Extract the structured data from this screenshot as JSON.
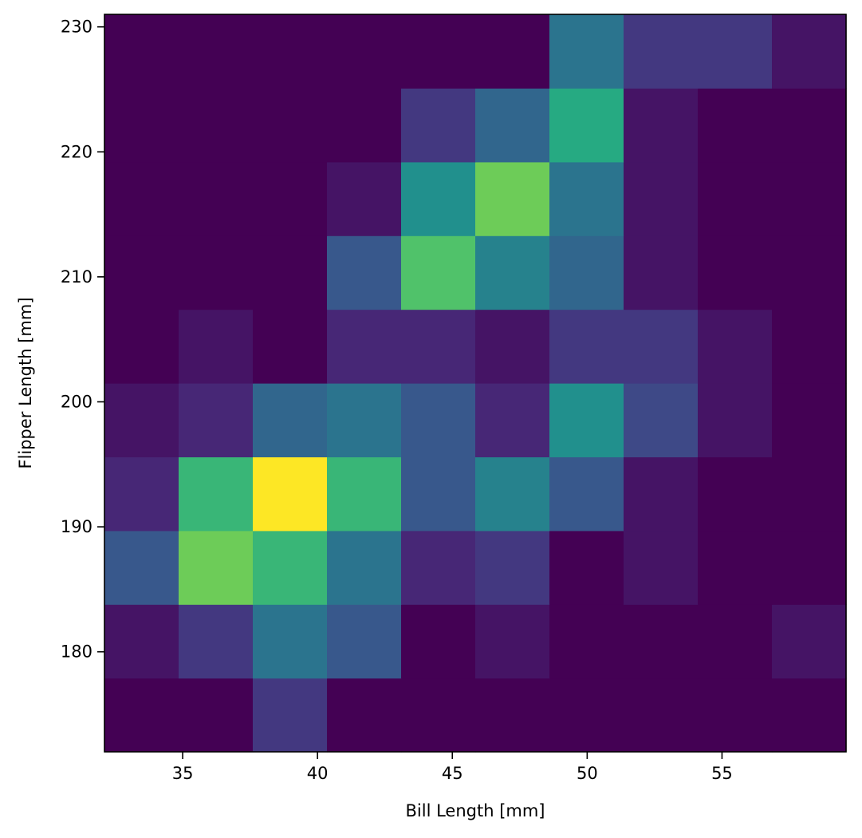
{
  "chart_data": {
    "type": "heatmap",
    "xlabel": "Bill Length [mm]",
    "ylabel": "Flipper Length [mm]",
    "xlim": [
      32.1,
      59.6
    ],
    "ylim": [
      172,
      231
    ],
    "x_ticks": [
      35,
      40,
      45,
      50,
      55
    ],
    "y_ticks": [
      180,
      190,
      200,
      210,
      220,
      230
    ],
    "x_bin_edges": [
      32.1,
      34.85,
      37.6,
      40.35,
      43.1,
      45.85,
      48.6,
      51.35,
      54.1,
      56.85,
      59.6
    ],
    "y_bin_edges": [
      172,
      177.9,
      183.8,
      189.7,
      195.6,
      201.5,
      207.4,
      213.3,
      219.2,
      225.1,
      231
    ],
    "colormap": "viridis",
    "value_range": [
      0,
      18
    ],
    "counts_bottom_to_top": [
      [
        0,
        0,
        3,
        0,
        0,
        0,
        0,
        0,
        0,
        0
      ],
      [
        1,
        3,
        7,
        5,
        0,
        1,
        0,
        0,
        0,
        1
      ],
      [
        5,
        14,
        12,
        7,
        2,
        3,
        0,
        1,
        0,
        0
      ],
      [
        2,
        12,
        18,
        12,
        5,
        8,
        5,
        1,
        0,
        0
      ],
      [
        1,
        2,
        6,
        7,
        5,
        2,
        9,
        4,
        1,
        0
      ],
      [
        0,
        1,
        0,
        2,
        2,
        1,
        3,
        3,
        1,
        0
      ],
      [
        0,
        0,
        0,
        5,
        13,
        8,
        6,
        1,
        0,
        0
      ],
      [
        0,
        0,
        0,
        1,
        9,
        14,
        7,
        1,
        0,
        0
      ],
      [
        0,
        0,
        0,
        0,
        3,
        6,
        11,
        1,
        0,
        0
      ],
      [
        0,
        0,
        0,
        0,
        0,
        0,
        7,
        3,
        3,
        1
      ]
    ]
  }
}
